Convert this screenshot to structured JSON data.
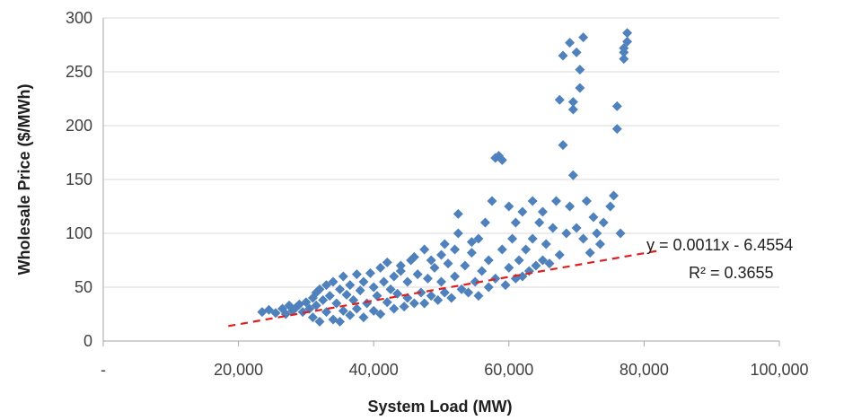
{
  "chart_data": {
    "type": "scatter",
    "xlabel": "System Load (MW)",
    "ylabel": "Wholesale Price ($/MWh)",
    "xlim": [
      0,
      100000
    ],
    "ylim": [
      0,
      300
    ],
    "x_ticks": [
      0,
      20000,
      40000,
      60000,
      80000,
      100000
    ],
    "x_tick_labels": [
      "-",
      "20,000",
      "40,000",
      "60,000",
      "80,000",
      "100,000"
    ],
    "y_ticks": [
      0,
      50,
      100,
      150,
      200,
      250,
      300
    ],
    "y_tick_labels": [
      "0",
      "50",
      "100",
      "150",
      "200",
      "250",
      "300"
    ],
    "grid": {
      "horizontal": true,
      "vertical": false
    },
    "legend": "none",
    "colors": {
      "points": "#4f81bd",
      "trendline": "#e02020",
      "gridline": "#d9d9d9",
      "axis": "#a6a6a6"
    },
    "trendline": {
      "slope": 0.0011,
      "intercept": -6.4554,
      "x_range": [
        18500,
        82000
      ],
      "equation_label": "y = 0.0011x - 6.4554",
      "r2_label": "R² = 0.3655"
    },
    "series": [
      {
        "marker": "diamond",
        "points": [
          [
            23500,
            27
          ],
          [
            24500,
            29
          ],
          [
            25500,
            26
          ],
          [
            26500,
            30
          ],
          [
            27000,
            25
          ],
          [
            27500,
            33
          ],
          [
            28000,
            28
          ],
          [
            28500,
            31
          ],
          [
            29000,
            34
          ],
          [
            29500,
            27
          ],
          [
            30000,
            36
          ],
          [
            30500,
            30
          ],
          [
            31000,
            40
          ],
          [
            31000,
            22
          ],
          [
            31500,
            45
          ],
          [
            31500,
            33
          ],
          [
            32000,
            18
          ],
          [
            32000,
            48
          ],
          [
            32500,
            38
          ],
          [
            33000,
            52
          ],
          [
            33000,
            27
          ],
          [
            33500,
            42
          ],
          [
            34000,
            20
          ],
          [
            34000,
            55
          ],
          [
            34500,
            35
          ],
          [
            35000,
            48
          ],
          [
            35000,
            18
          ],
          [
            35500,
            60
          ],
          [
            35500,
            28
          ],
          [
            36000,
            43
          ],
          [
            36500,
            52
          ],
          [
            36500,
            24
          ],
          [
            37000,
            38
          ],
          [
            37500,
            62
          ],
          [
            37500,
            30
          ],
          [
            38000,
            47
          ],
          [
            38500,
            22
          ],
          [
            38500,
            55
          ],
          [
            39000,
            35
          ],
          [
            39500,
            63
          ],
          [
            40000,
            28
          ],
          [
            40000,
            50
          ],
          [
            40500,
            42
          ],
          [
            41000,
            68
          ],
          [
            41000,
            25
          ],
          [
            41500,
            55
          ],
          [
            42000,
            36
          ],
          [
            42000,
            73
          ],
          [
            42500,
            48
          ],
          [
            43000,
            30
          ],
          [
            43000,
            60
          ],
          [
            43500,
            44
          ],
          [
            44000,
            70
          ],
          [
            44500,
            32
          ],
          [
            45000,
            55
          ],
          [
            45000,
            40
          ],
          [
            45500,
            75
          ],
          [
            46000,
            35
          ],
          [
            46500,
            62
          ],
          [
            47000,
            45
          ],
          [
            47500,
            35
          ],
          [
            47500,
            85
          ],
          [
            48000,
            58
          ],
          [
            48500,
            42
          ],
          [
            49000,
            68
          ],
          [
            49500,
            38
          ],
          [
            50000,
            55
          ],
          [
            50500,
            45
          ],
          [
            50500,
            90
          ],
          [
            51000,
            72
          ],
          [
            51500,
            40
          ],
          [
            52000,
            60
          ],
          [
            52500,
            100
          ],
          [
            52500,
            118
          ],
          [
            53000,
            48
          ],
          [
            53500,
            70
          ],
          [
            54000,
            45
          ],
          [
            54500,
            82
          ],
          [
            55000,
            55
          ],
          [
            55500,
            42
          ],
          [
            55500,
            95
          ],
          [
            56000,
            65
          ],
          [
            56500,
            110
          ],
          [
            57000,
            50
          ],
          [
            57000,
            75
          ],
          [
            57500,
            130
          ],
          [
            58000,
            58
          ],
          [
            58000,
            170
          ],
          [
            58500,
            172
          ],
          [
            59000,
            168
          ],
          [
            59000,
            85
          ],
          [
            59500,
            52
          ],
          [
            60000,
            125
          ],
          [
            60000,
            68
          ],
          [
            60500,
            95
          ],
          [
            61000,
            58
          ],
          [
            61000,
            110
          ],
          [
            61500,
            75
          ],
          [
            62000,
            60
          ],
          [
            62000,
            120
          ],
          [
            62500,
            85
          ],
          [
            63000,
            65
          ],
          [
            63500,
            130
          ],
          [
            63500,
            95
          ],
          [
            64000,
            70
          ],
          [
            64500,
            110
          ],
          [
            65000,
            75
          ],
          [
            65000,
            120
          ],
          [
            65500,
            90
          ],
          [
            66000,
            72
          ],
          [
            66500,
            105
          ],
          [
            67000,
            130
          ],
          [
            67500,
            80
          ],
          [
            67500,
            224
          ],
          [
            68000,
            265
          ],
          [
            68000,
            182
          ],
          [
            68500,
            100
          ],
          [
            69000,
            277
          ],
          [
            69000,
            125
          ],
          [
            69500,
            222
          ],
          [
            69500,
            215
          ],
          [
            69500,
            154
          ],
          [
            70000,
            268
          ],
          [
            70000,
            105
          ],
          [
            70500,
            252
          ],
          [
            70500,
            235
          ],
          [
            71000,
            282
          ],
          [
            71000,
            95
          ],
          [
            71500,
            130
          ],
          [
            72000,
            82
          ],
          [
            72500,
            115
          ],
          [
            73000,
            100
          ],
          [
            73500,
            90
          ],
          [
            74000,
            110
          ],
          [
            75000,
            125
          ],
          [
            75500,
            135
          ],
          [
            76000,
            218
          ],
          [
            76000,
            197
          ],
          [
            77000,
            268
          ],
          [
            77000,
            262
          ],
          [
            77500,
            278
          ],
          [
            77500,
            286
          ],
          [
            77000,
            272
          ],
          [
            76500,
            100
          ],
          [
            44000,
            65
          ],
          [
            46000,
            78
          ],
          [
            48500,
            75
          ],
          [
            50000,
            80
          ],
          [
            52000,
            85
          ],
          [
            54500,
            92
          ]
        ]
      }
    ]
  }
}
